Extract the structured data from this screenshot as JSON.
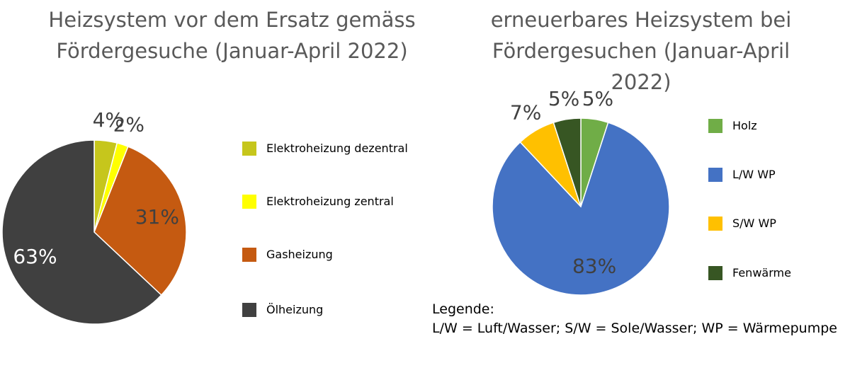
{
  "chart_data": [
    {
      "type": "pie",
      "title": "Heizsystem vor dem Ersatz gemäss Fördergesuche (Januar-April 2022)",
      "categories": [
        "Elektroheizung dezentral",
        "Elektroheizung zentral",
        "Gasheizung",
        "Ölheizung"
      ],
      "values": [
        4,
        2,
        31,
        63
      ],
      "value_labels": [
        "4%",
        "2%",
        "31%",
        "63%"
      ],
      "colors": [
        "#c6c61c",
        "#ffff00",
        "#c55a11",
        "#404040"
      ],
      "legend": "right"
    },
    {
      "type": "pie",
      "title": "erneuerbares Heizsystem bei Fördergesuchen (Januar-April 2022)",
      "categories": [
        "Holz",
        "L/W WP",
        "S/W WP",
        "Fenwärme"
      ],
      "values": [
        5,
        83,
        7,
        5
      ],
      "value_labels": [
        "5%",
        "83%",
        "7%",
        "5%"
      ],
      "colors": [
        "#70ad47",
        "#4472c4",
        "#ffc000",
        "#375623"
      ],
      "legend": "right",
      "annotations": [
        "Legende:",
        "L/W = Luft/Wasser; S/W = Sole/Wasser; WP = Wärmepumpe"
      ]
    }
  ]
}
